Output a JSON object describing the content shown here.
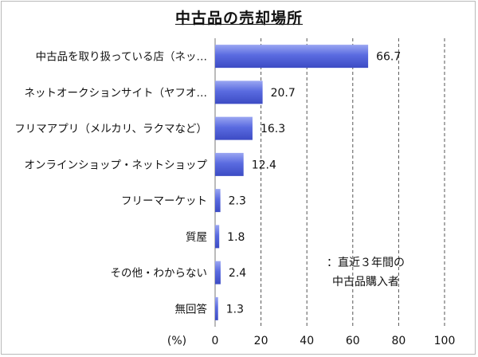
{
  "chart_data": {
    "type": "bar",
    "orientation": "horizontal",
    "title": "中古品の売却場所",
    "categories": [
      "中古品を取り扱っている店（ネッ…",
      "ネットオークションサイト（ヤフオ…",
      "フリマアプリ（メルカリ、ラクマなど）",
      "オンラインショップ・ネットショップ",
      "フリーマーケット",
      "質屋",
      "その他・わからない",
      "無回答"
    ],
    "values": [
      66.7,
      20.7,
      16.3,
      12.4,
      2.3,
      1.8,
      2.4,
      1.3
    ],
    "value_labels": [
      "66.7",
      "20.7",
      "16.3",
      "12.4",
      "2.3",
      "1.8",
      "2.4",
      "1.3"
    ],
    "xlabel": "(%)",
    "xlim": [
      0,
      100
    ],
    "xticks": [
      "0",
      "20",
      "40",
      "60",
      "80",
      "100"
    ],
    "grid": true,
    "bar_color": "#4a5ad6",
    "annotation_lines": [
      "：直近３年間の",
      "中古品購入者"
    ]
  }
}
